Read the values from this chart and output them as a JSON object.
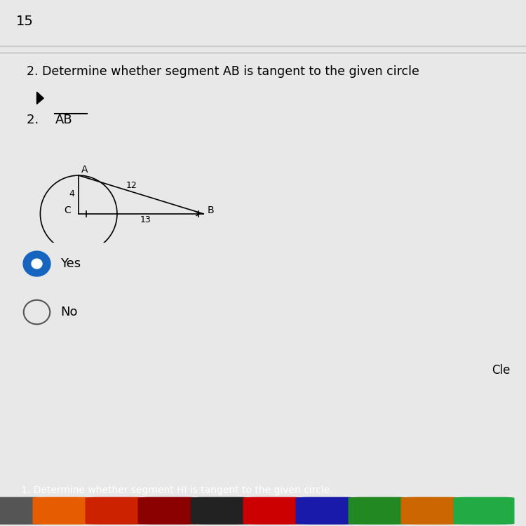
{
  "background_color": "#e8e8e8",
  "page_number": "15",
  "question_text": "2. Determine whether segment AB is tangent to the given circle",
  "point_C_label": "C",
  "point_A_label": "A",
  "point_B_label": "B",
  "radius_label": "4",
  "segment_CB_label": "13",
  "segment_AB_label": "12",
  "answer_yes": "Yes",
  "answer_no": "No",
  "footer_text": "1. Determine whether segment HI is tangent to the given circle.",
  "cle_text": "Cle"
}
